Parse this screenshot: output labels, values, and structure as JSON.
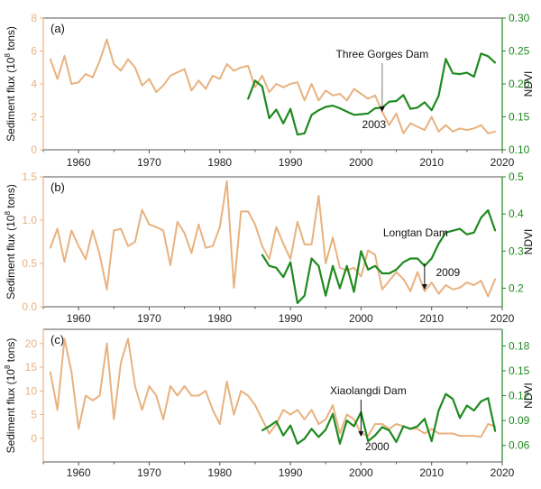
{
  "colors": {
    "sediment": "#E8B27F",
    "ndvi": "#1F8A1F",
    "left_axis": "#E8B27F",
    "right_axis": "#1F8A1F",
    "frame": "#555555",
    "text": "#111111"
  },
  "chart_data": [
    {
      "type": "line",
      "panel_label": "(a)",
      "ylabel_left": "Sediment flux (10^8 tons)",
      "ylabel_right": "NDVI",
      "xlim": [
        1955,
        2020
      ],
      "xticks": [
        1960,
        1970,
        1980,
        1990,
        2000,
        2010,
        2020
      ],
      "ylim_left": [
        0,
        8
      ],
      "yticks_left": [
        0,
        2,
        4,
        6,
        8
      ],
      "ylim_right": [
        0.1,
        0.3
      ],
      "yticks_right": [
        0.1,
        0.15,
        0.2,
        0.25,
        0.3
      ],
      "ytick_format_right": 2,
      "annotation": {
        "label": "Three Gorges Dam",
        "year_label": "2003",
        "year": 2003
      },
      "series": [
        {
          "axis": "left",
          "x": [
            1956,
            1957,
            1958,
            1959,
            1960,
            1961,
            1962,
            1963,
            1964,
            1965,
            1966,
            1967,
            1968,
            1969,
            1970,
            1971,
            1972,
            1973,
            1974,
            1975,
            1976,
            1977,
            1978,
            1979,
            1980,
            1981,
            1982,
            1983,
            1984,
            1985,
            1986,
            1987,
            1988,
            1989,
            1990,
            1991,
            1992,
            1993,
            1994,
            1995,
            1996,
            1997,
            1998,
            1999,
            2000,
            2001,
            2002,
            2003,
            2004,
            2005,
            2006,
            2007,
            2008,
            2009,
            2010,
            2011,
            2012,
            2013,
            2014,
            2015,
            2016,
            2017,
            2018,
            2019
          ],
          "values": [
            5.5,
            4.3,
            5.7,
            4.0,
            4.1,
            4.6,
            4.4,
            5.4,
            6.7,
            5.2,
            4.8,
            5.5,
            5.0,
            3.9,
            4.3,
            3.5,
            3.9,
            4.5,
            4.7,
            4.9,
            3.6,
            4.2,
            3.7,
            4.5,
            4.3,
            5.2,
            4.8,
            5.0,
            5.1,
            3.8,
            4.5,
            3.5,
            4.0,
            3.8,
            4.0,
            4.1,
            3.0,
            4.0,
            3.0,
            3.6,
            3.3,
            3.4,
            3.0,
            3.7,
            3.4,
            3.1,
            3.3,
            2.3,
            1.5,
            2.2,
            1.0,
            1.6,
            1.4,
            1.2,
            2.0,
            1.1,
            1.5,
            1.1,
            1.3,
            1.2,
            1.3,
            1.5,
            1.0,
            1.1
          ]
        },
        {
          "axis": "right",
          "x": [
            1984,
            1985,
            1986,
            1987,
            1988,
            1989,
            1990,
            1991,
            1992,
            1993,
            1994,
            1995,
            1996,
            1997,
            1998,
            1999,
            2000,
            2001,
            2002,
            2003,
            2004,
            2005,
            2006,
            2007,
            2008,
            2009,
            2010,
            2011,
            2012,
            2013,
            2014,
            2015,
            2016,
            2017,
            2018,
            2019
          ],
          "values": [
            0.177,
            0.205,
            0.196,
            0.148,
            0.161,
            0.14,
            0.162,
            0.123,
            0.125,
            0.153,
            0.16,
            0.165,
            0.167,
            0.163,
            0.158,
            0.153,
            0.154,
            0.155,
            0.163,
            0.164,
            0.173,
            0.174,
            0.183,
            0.162,
            0.164,
            0.172,
            0.16,
            0.182,
            0.238,
            0.216,
            0.215,
            0.217,
            0.211,
            0.246,
            0.242,
            0.232
          ]
        }
      ]
    },
    {
      "type": "line",
      "panel_label": "(b)",
      "ylabel_left": "Sediment flux (10^8 tons)",
      "ylabel_right": "NDVI",
      "xlim": [
        1955,
        2020
      ],
      "xticks": [
        1960,
        1970,
        1980,
        1990,
        2000,
        2010,
        2020
      ],
      "ylim_left": [
        0,
        1.5
      ],
      "yticks_left": [
        0,
        0.5,
        1.0,
        1.5
      ],
      "ytick_format_left": 1,
      "ylim_right": [
        0.15,
        0.5
      ],
      "yticks_right": [
        0.2,
        0.3,
        0.4,
        0.5
      ],
      "ytick_format_right": 1,
      "annotation": {
        "label": "Longtan Dam",
        "year_label": "2009",
        "year": 2009
      },
      "series": [
        {
          "axis": "left",
          "x": [
            1956,
            1957,
            1958,
            1959,
            1960,
            1961,
            1962,
            1963,
            1964,
            1965,
            1966,
            1967,
            1968,
            1969,
            1970,
            1971,
            1972,
            1973,
            1974,
            1975,
            1976,
            1977,
            1978,
            1979,
            1980,
            1981,
            1982,
            1983,
            1984,
            1985,
            1986,
            1987,
            1988,
            1989,
            1990,
            1991,
            1992,
            1993,
            1994,
            1995,
            1996,
            1997,
            1998,
            1999,
            2000,
            2001,
            2002,
            2003,
            2004,
            2005,
            2006,
            2007,
            2008,
            2009,
            2010,
            2011,
            2012,
            2013,
            2014,
            2015,
            2016,
            2017,
            2018,
            2019
          ],
          "values": [
            0.68,
            0.9,
            0.52,
            0.88,
            0.7,
            0.55,
            0.88,
            0.6,
            0.2,
            0.88,
            0.9,
            0.7,
            0.75,
            1.12,
            0.95,
            0.92,
            0.88,
            0.48,
            0.98,
            0.85,
            0.62,
            0.95,
            0.68,
            0.7,
            0.92,
            1.45,
            0.22,
            1.1,
            1.1,
            0.95,
            0.7,
            0.55,
            0.92,
            0.73,
            0.55,
            0.98,
            0.72,
            0.72,
            1.28,
            0.5,
            0.8,
            0.45,
            0.42,
            0.45,
            0.35,
            0.65,
            0.6,
            0.2,
            0.3,
            0.4,
            0.32,
            0.18,
            0.4,
            0.18,
            0.28,
            0.15,
            0.25,
            0.2,
            0.22,
            0.28,
            0.25,
            0.3,
            0.12,
            0.32
          ]
        },
        {
          "axis": "right",
          "x": [
            1986,
            1987,
            1988,
            1989,
            1990,
            1991,
            1992,
            1993,
            1994,
            1995,
            1996,
            1997,
            1998,
            1999,
            2000,
            2001,
            2002,
            2003,
            2004,
            2005,
            2006,
            2007,
            2008,
            2009,
            2010,
            2011,
            2012,
            2013,
            2014,
            2015,
            2016,
            2017,
            2018,
            2019
          ],
          "values": [
            0.29,
            0.26,
            0.255,
            0.23,
            0.27,
            0.16,
            0.18,
            0.28,
            0.26,
            0.18,
            0.26,
            0.2,
            0.26,
            0.19,
            0.3,
            0.25,
            0.26,
            0.24,
            0.24,
            0.25,
            0.27,
            0.28,
            0.28,
            0.26,
            0.28,
            0.32,
            0.35,
            0.355,
            0.36,
            0.345,
            0.35,
            0.39,
            0.41,
            0.355
          ]
        }
      ]
    },
    {
      "type": "line",
      "panel_label": "(c)",
      "ylabel_left": "Sediment flux (10^8 tons)",
      "ylabel_right": "NDVI",
      "xlim": [
        1955,
        2020
      ],
      "xticks": [
        1960,
        1970,
        1980,
        1990,
        2000,
        2010,
        2020
      ],
      "ylim_left": [
        -5,
        23
      ],
      "yticks_left": [
        0,
        5,
        10,
        15,
        20
      ],
      "ylim_right": [
        0.04,
        0.2
      ],
      "yticks_right": [
        0.06,
        0.09,
        0.12,
        0.15,
        0.18
      ],
      "ytick_format_right": 2,
      "annotation": {
        "label": "Xiaolangdi Dam",
        "year_label": "2000",
        "year": 2000
      },
      "series": [
        {
          "axis": "left",
          "x": [
            1956,
            1957,
            1958,
            1959,
            1960,
            1961,
            1962,
            1963,
            1964,
            1965,
            1966,
            1967,
            1968,
            1969,
            1970,
            1971,
            1972,
            1973,
            1974,
            1975,
            1976,
            1977,
            1978,
            1979,
            1980,
            1981,
            1982,
            1983,
            1984,
            1985,
            1986,
            1987,
            1988,
            1989,
            1990,
            1991,
            1992,
            1993,
            1994,
            1995,
            1996,
            1997,
            1998,
            1999,
            2000,
            2001,
            2002,
            2003,
            2004,
            2005,
            2006,
            2007,
            2008,
            2009,
            2010,
            2011,
            2012,
            2013,
            2014,
            2015,
            2016,
            2017,
            2018,
            2019
          ],
          "values": [
            14,
            6,
            21,
            14,
            2,
            9,
            8,
            9,
            20,
            4,
            16,
            21,
            11,
            6,
            11,
            9,
            4,
            11,
            9,
            11,
            9,
            9,
            10,
            6,
            3,
            12,
            5,
            10,
            9,
            7,
            4,
            1,
            3,
            6,
            5,
            6,
            4,
            6,
            3,
            4,
            7,
            1,
            5,
            4,
            1,
            0.5,
            3,
            3,
            2,
            3,
            2.5,
            2,
            2,
            1,
            2,
            1,
            1,
            1,
            0.5,
            0.5,
            0.5,
            0.3,
            3,
            2.5
          ]
        },
        {
          "axis": "right",
          "x": [
            1986,
            1987,
            1988,
            1989,
            1990,
            1991,
            1992,
            1993,
            1994,
            1995,
            1996,
            1997,
            1998,
            1999,
            2000,
            2001,
            2002,
            2003,
            2004,
            2005,
            2006,
            2007,
            2008,
            2009,
            2010,
            2011,
            2012,
            2013,
            2014,
            2015,
            2016,
            2017,
            2018,
            2019
          ],
          "values": [
            0.078,
            0.083,
            0.089,
            0.072,
            0.084,
            0.062,
            0.068,
            0.08,
            0.07,
            0.079,
            0.098,
            0.062,
            0.09,
            0.083,
            0.1,
            0.065,
            0.072,
            0.082,
            0.078,
            0.064,
            0.083,
            0.08,
            0.083,
            0.092,
            0.065,
            0.102,
            0.122,
            0.116,
            0.093,
            0.108,
            0.102,
            0.113,
            0.117,
            0.077
          ]
        }
      ]
    }
  ]
}
